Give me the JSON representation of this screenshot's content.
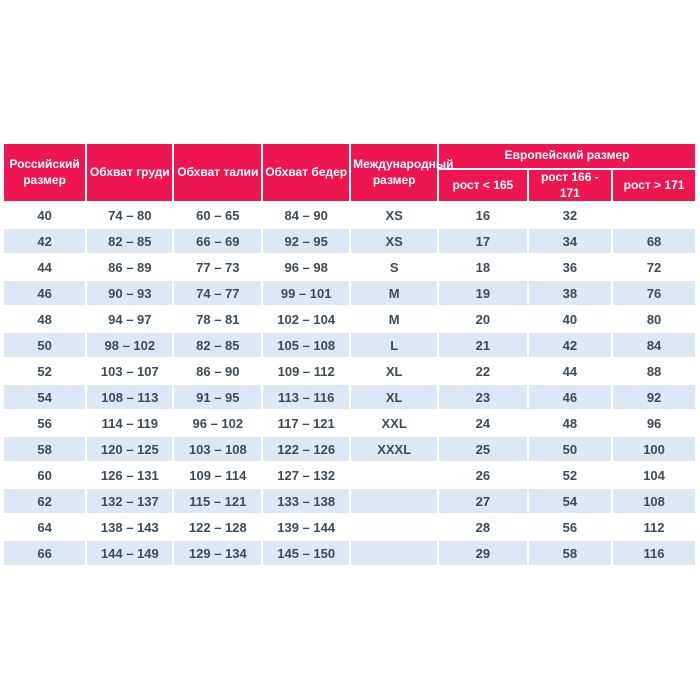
{
  "colors": {
    "header_bg": "#ED1650",
    "header_text": "#FFFFFF",
    "stripe_bg": "#DEE8F5",
    "cell_text": "#3D4B57",
    "page_bg": "#FFFFFF"
  },
  "chart_data": {
    "type": "table",
    "columns_main": [
      "Российский размер",
      "Обхват груди",
      "Обхват талии",
      "Обхват бедер",
      "Международный размер"
    ],
    "european_group": {
      "label": "Европейский размер",
      "sub_columns": [
        "рост < 165",
        "рост 166 - 171",
        "рост > 171"
      ]
    },
    "rows": [
      [
        "40",
        "74 – 80",
        "60 – 65",
        "84 – 90",
        "XS",
        "16",
        "32",
        ""
      ],
      [
        "42",
        "82 – 85",
        "66 – 69",
        "92 – 95",
        "XS",
        "17",
        "34",
        "68"
      ],
      [
        "44",
        "86 – 89",
        "77 – 73",
        "96 – 98",
        "S",
        "18",
        "36",
        "72"
      ],
      [
        "46",
        "90 – 93",
        "74 – 77",
        "99 – 101",
        "M",
        "19",
        "38",
        "76"
      ],
      [
        "48",
        "94 – 97",
        "78 – 81",
        "102 – 104",
        "M",
        "20",
        "40",
        "80"
      ],
      [
        "50",
        "98 – 102",
        "82 – 85",
        "105 – 108",
        "L",
        "21",
        "42",
        "84"
      ],
      [
        "52",
        "103 – 107",
        "86 – 90",
        "109 – 112",
        "XL",
        "22",
        "44",
        "88"
      ],
      [
        "54",
        "108 – 113",
        "91 – 95",
        "113 – 116",
        "XL",
        "23",
        "46",
        "92"
      ],
      [
        "56",
        "114 – 119",
        "96 – 102",
        "117 – 121",
        "XXL",
        "24",
        "48",
        "96"
      ],
      [
        "58",
        "120 – 125",
        "103 – 108",
        "122 – 126",
        "XXXL",
        "25",
        "50",
        "100"
      ],
      [
        "60",
        "126 – 131",
        "109 – 114",
        "127 – 132",
        "",
        "26",
        "52",
        "104"
      ],
      [
        "62",
        "132 – 137",
        "115 – 121",
        "133 – 138",
        "",
        "27",
        "54",
        "108"
      ],
      [
        "64",
        "138 – 143",
        "122 – 128",
        "139 – 144",
        "",
        "28",
        "56",
        "112"
      ],
      [
        "66",
        "144 – 149",
        "129 – 134",
        "145 – 150",
        "",
        "29",
        "58",
        "116"
      ]
    ]
  }
}
